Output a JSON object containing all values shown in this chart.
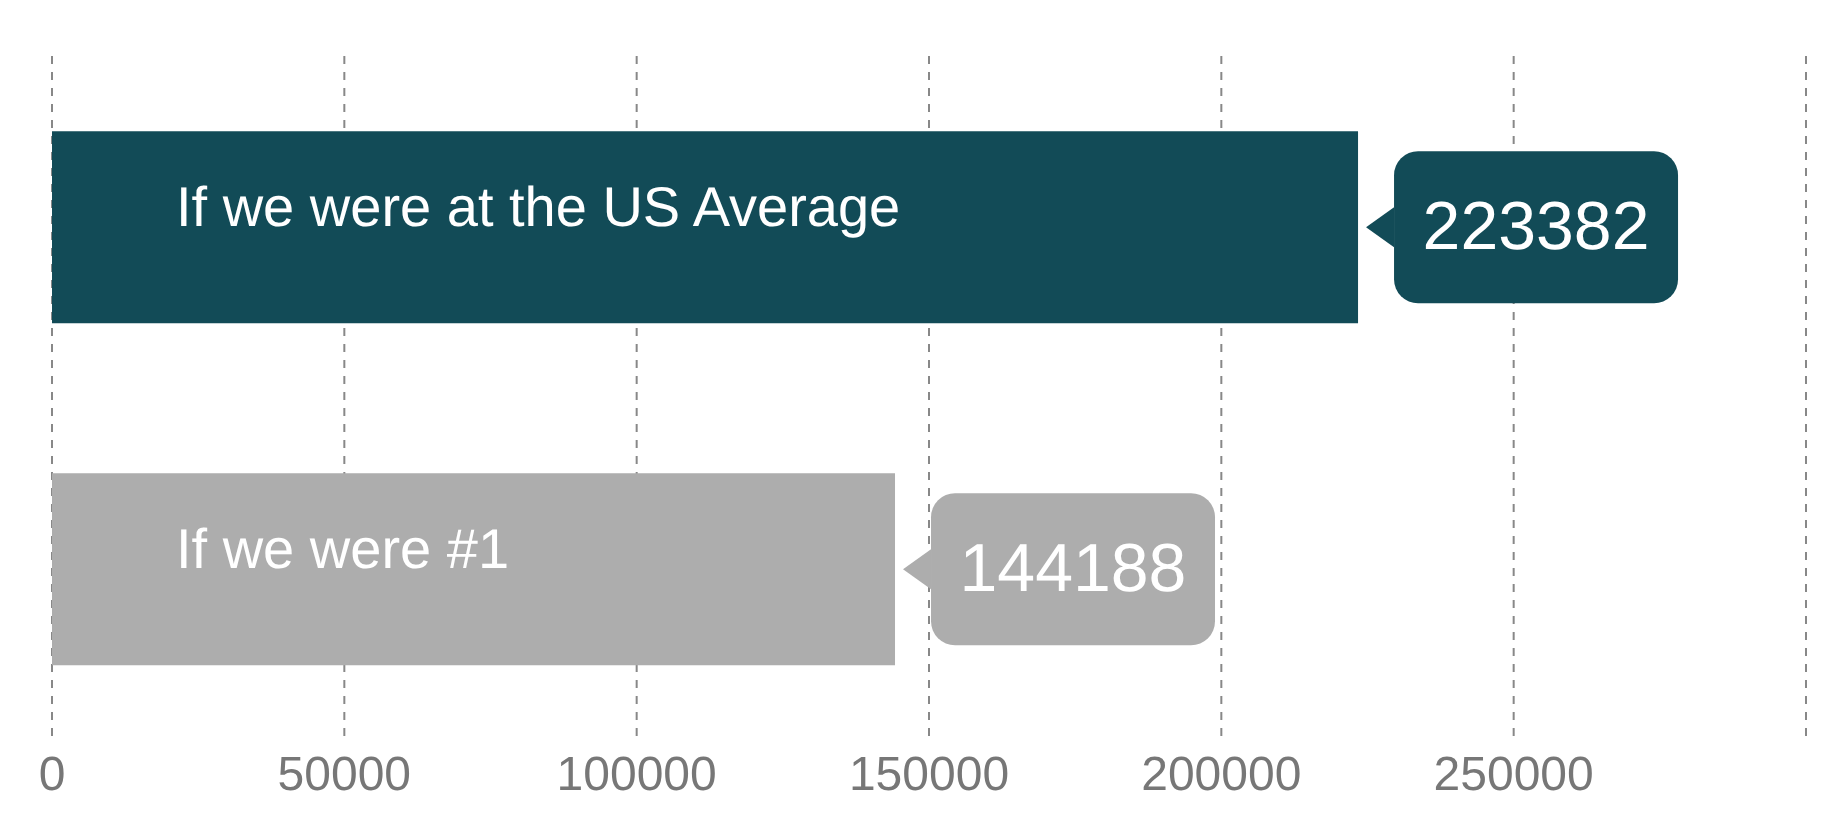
{
  "chart_data": {
    "type": "bar",
    "orientation": "horizontal",
    "categories": [
      "If we were at the US Average",
      "If we were #1"
    ],
    "values": [
      223382,
      144188
    ],
    "colors": [
      "#124b57",
      "#adadad"
    ],
    "xlim": [
      0,
      300000
    ],
    "xticks": [
      0,
      50000,
      100000,
      150000,
      200000,
      250000
    ],
    "grid": "x",
    "data_labels": true
  }
}
